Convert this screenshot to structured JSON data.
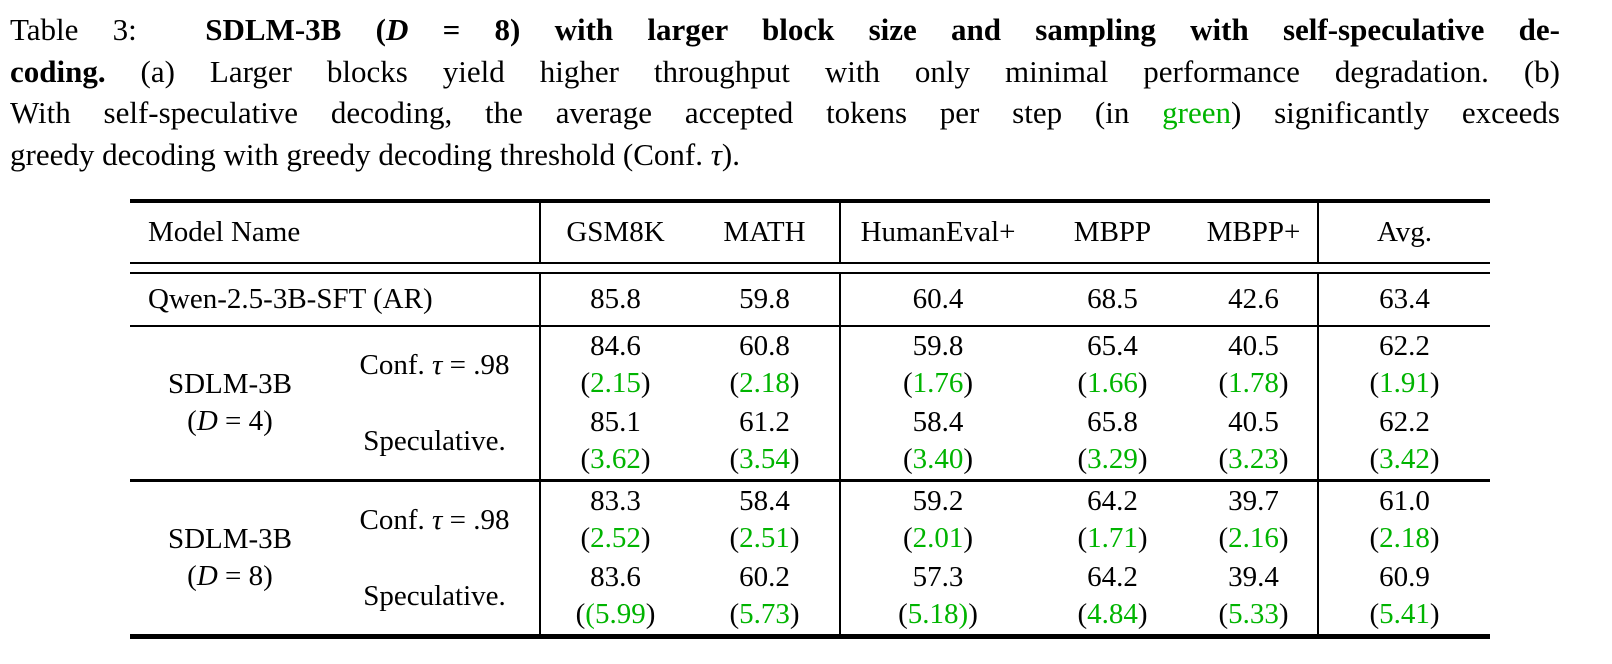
{
  "colors": {
    "green": "#00b400",
    "text": "#000000",
    "background": "#ffffff"
  },
  "caption": {
    "lines": [
      {
        "segments": [
          {
            "text": "Table 3:  ",
            "style": "normal"
          },
          {
            "text": "SDLM-3B (",
            "style": "bold"
          },
          {
            "text": "D",
            "style": "bolditalic"
          },
          {
            "text": " = 8) ",
            "style": "bold"
          },
          {
            "text": "with larger block size and sampling with self-speculative de-",
            "style": "bold"
          }
        ]
      },
      {
        "segments": [
          {
            "text": "coding.",
            "style": "bold"
          },
          {
            "text": " (a) Larger blocks yield higher throughput with only minimal performance degradation. (b)",
            "style": "normal"
          }
        ]
      },
      {
        "segments": [
          {
            "text": "With self-speculative decoding, the average accepted tokens per step (in ",
            "style": "normal"
          },
          {
            "text": "green",
            "style": "green"
          },
          {
            "text": ") significantly exceeds",
            "style": "normal"
          }
        ]
      },
      {
        "segments": [
          {
            "text": "greedy decoding with greedy decoding threshold (Conf. ",
            "style": "normal"
          },
          {
            "text": "τ",
            "style": "italic"
          },
          {
            "text": ").",
            "style": "normal"
          }
        ]
      }
    ]
  },
  "table": {
    "headers": [
      "Model Name",
      "GSM8K",
      "MATH",
      "HumanEval+",
      "MBPP",
      "MBPP+",
      "Avg."
    ],
    "qwen": {
      "label": "Qwen-2.5-3B-SFT (AR)",
      "values": [
        "85.8",
        "59.8",
        "60.4",
        "68.5",
        "42.6",
        "63.4"
      ]
    },
    "sections": [
      {
        "group_line1": "SDLM-3B",
        "group_line2": [
          {
            "text": "(",
            "style": "normal"
          },
          {
            "text": "D",
            "style": "italic"
          },
          {
            "text": " = 4)",
            "style": "normal"
          }
        ],
        "rows": [
          {
            "method": [
              {
                "text": "Conf. ",
                "style": "normal"
              },
              {
                "text": "τ",
                "style": "italic"
              },
              {
                "text": " = .98",
                "style": "normal"
              }
            ],
            "cells": [
              {
                "score": "84.6",
                "pre": "(",
                "green": "2.15",
                "post": ")"
              },
              {
                "score": "60.8",
                "pre": "(",
                "green": "2.18",
                "post": ")"
              },
              {
                "score": "59.8",
                "pre": "(",
                "green": "1.76",
                "post": ")"
              },
              {
                "score": "65.4",
                "pre": "(",
                "green": "1.66",
                "post": ")"
              },
              {
                "score": "40.5",
                "pre": "(",
                "green": "1.78",
                "post": ")"
              },
              {
                "score": "62.2",
                "pre": "(",
                "green": "1.91",
                "post": ")"
              }
            ]
          },
          {
            "method": [
              {
                "text": "Speculative.",
                "style": "normal"
              }
            ],
            "cells": [
              {
                "score": "85.1",
                "pre": "(",
                "green": "3.62",
                "post": ")"
              },
              {
                "score": "61.2",
                "pre": "(",
                "green": "3.54",
                "post": ")"
              },
              {
                "score": "58.4",
                "pre": "(",
                "green": "3.40",
                "post": ")"
              },
              {
                "score": "65.8",
                "pre": "(",
                "green": "3.29",
                "post": ")"
              },
              {
                "score": "40.5",
                "pre": "(",
                "green": "3.23",
                "post": ")"
              },
              {
                "score": "62.2",
                "pre": "(",
                "green": "3.42",
                "post": ")"
              }
            ]
          }
        ]
      },
      {
        "group_line1": "SDLM-3B",
        "group_line2": [
          {
            "text": "(",
            "style": "normal"
          },
          {
            "text": "D",
            "style": "italic"
          },
          {
            "text": " = 8)",
            "style": "normal"
          }
        ],
        "rows": [
          {
            "method": [
              {
                "text": "Conf. ",
                "style": "normal"
              },
              {
                "text": "τ",
                "style": "italic"
              },
              {
                "text": " = .98",
                "style": "normal"
              }
            ],
            "cells": [
              {
                "score": "83.3",
                "pre": "(",
                "green": "2.52",
                "post": ")"
              },
              {
                "score": "58.4",
                "pre": "(",
                "green": "2.51",
                "post": ")"
              },
              {
                "score": "59.2",
                "pre": "(",
                "green": "2.01",
                "post": ")"
              },
              {
                "score": "64.2",
                "pre": "(",
                "green": "1.71",
                "post": ")"
              },
              {
                "score": "39.7",
                "pre": "(",
                "green": "2.16",
                "post": ")"
              },
              {
                "score": "61.0",
                "pre": "(",
                "green": "2.18",
                "post": ")"
              }
            ]
          },
          {
            "method": [
              {
                "text": "Speculative.",
                "style": "normal"
              }
            ],
            "cells": [
              {
                "score": "83.6",
                "pre": "(",
                "green": "(5.99",
                "post": ")"
              },
              {
                "score": "60.2",
                "pre": "(",
                "green": "5.73",
                "post": ")"
              },
              {
                "score": "57.3",
                "pre": "(",
                "green": "5.18)",
                "post": ")"
              },
              {
                "score": "64.2",
                "pre": "(",
                "green": "4.84",
                "post": ")"
              },
              {
                "score": "39.4",
                "pre": "(",
                "green": "5.33",
                "post": ")"
              },
              {
                "score": "60.9",
                "pre": "(",
                "green": "5.41",
                "post": ")"
              }
            ]
          }
        ]
      }
    ]
  }
}
